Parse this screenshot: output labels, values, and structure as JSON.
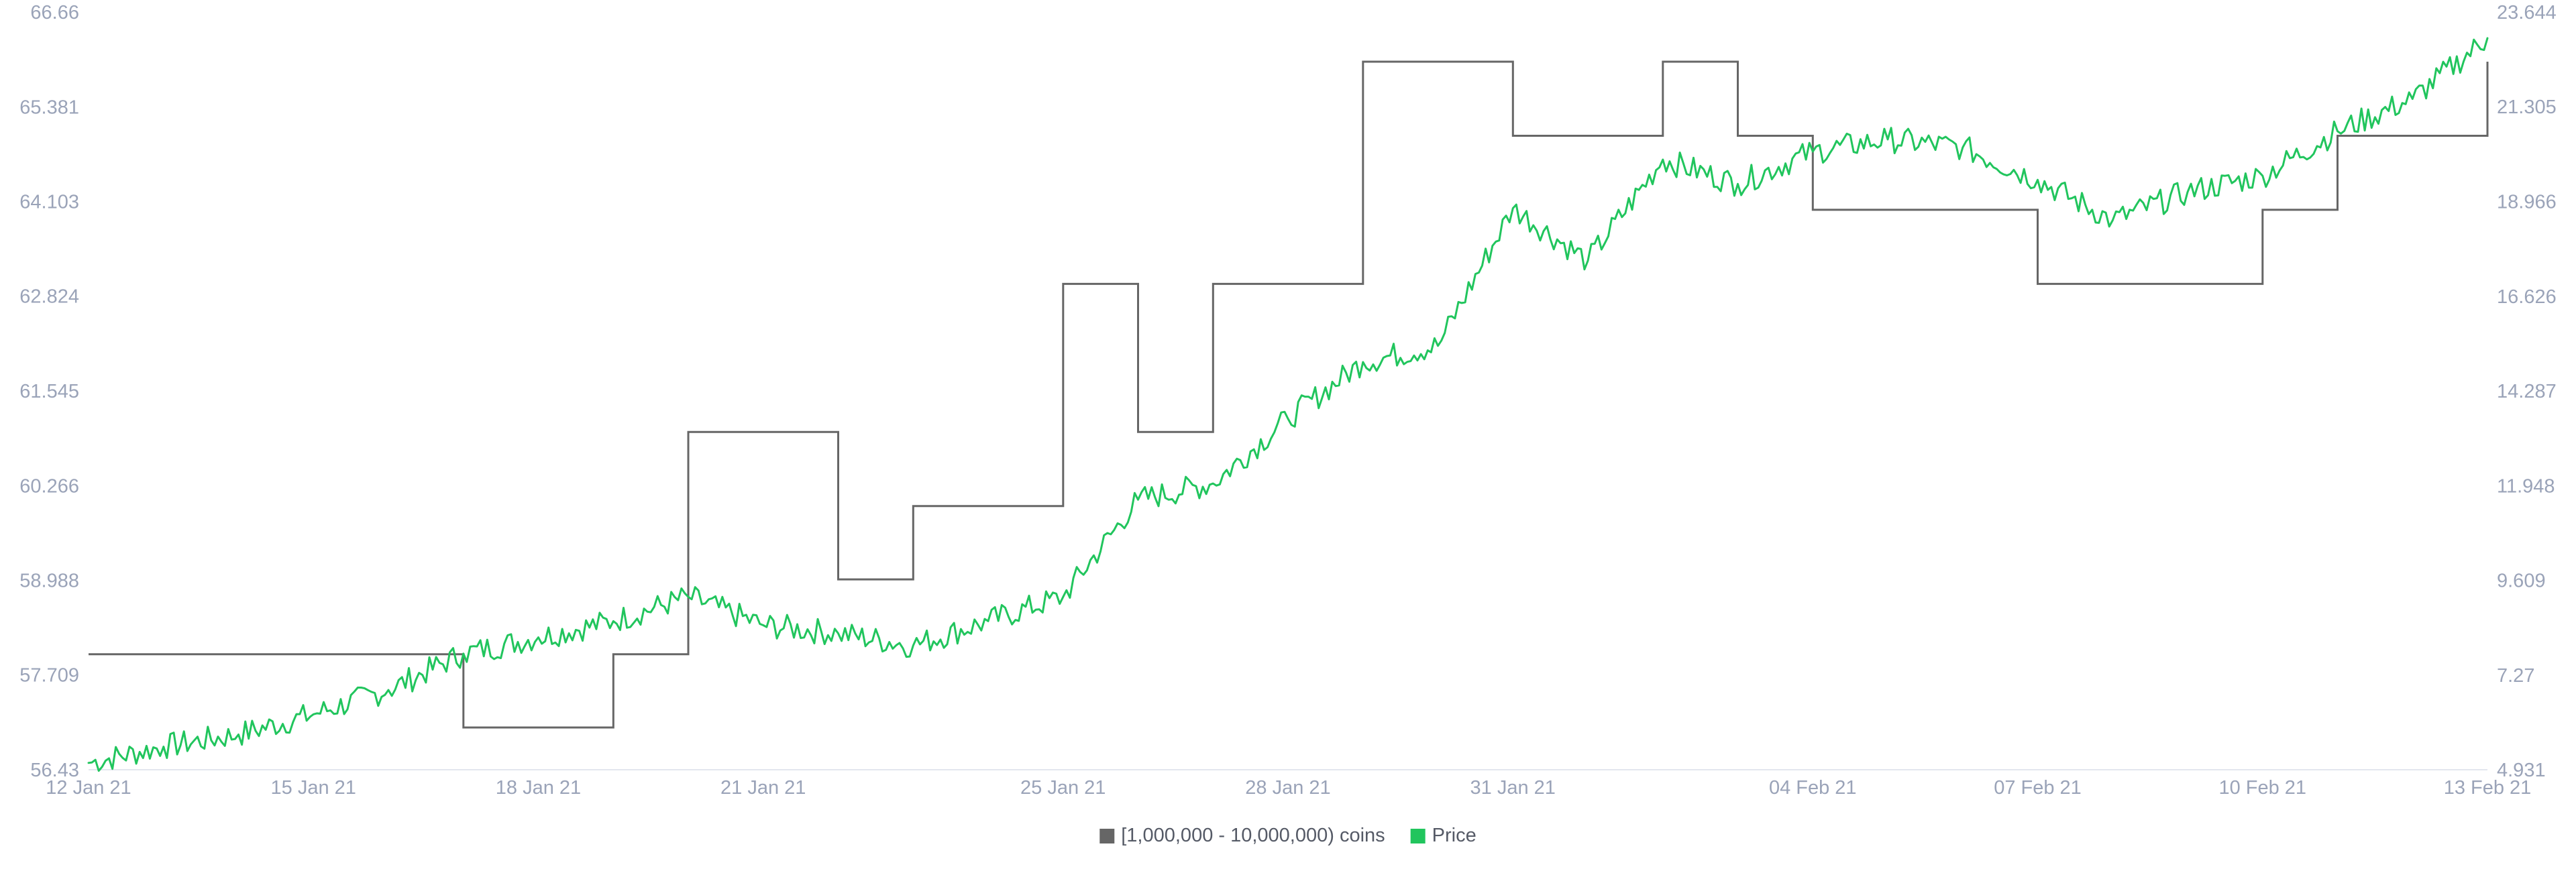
{
  "chart_data": {
    "type": "line",
    "title": "",
    "xlabel": "",
    "ylabel": "",
    "x_ticks": [
      "12 Jan 21",
      "15 Jan 21",
      "18 Jan 21",
      "21 Jan 21",
      "25 Jan 21",
      "28 Jan 21",
      "31 Jan 21",
      "04 Feb 21",
      "07 Feb 21",
      "10 Feb 21",
      "13 Feb 21"
    ],
    "x_range": [
      "2021-01-12",
      "2021-02-13"
    ],
    "left_axis": {
      "ticks": [
        "56.43",
        "57.709",
        "58.988",
        "60.266",
        "61.545",
        "62.824",
        "64.103",
        "65.381",
        "66.66"
      ],
      "range": [
        56.43,
        66.66
      ]
    },
    "right_axis": {
      "ticks": [
        "4.931",
        "7.27",
        "9.609",
        "11.948",
        "14.287",
        "16.626",
        "18.966",
        "21.305",
        "23.644"
      ],
      "range": [
        4.931,
        23.644
      ]
    },
    "legend_position": "bottom-center",
    "grid": "none",
    "series": [
      {
        "name": "[1,000,000 - 10,000,000) coins",
        "axis": "left",
        "color": "#666666",
        "shape": "step",
        "points": [
          [
            "2021-01-12",
            57.99
          ],
          [
            "2021-01-17",
            57.99
          ],
          [
            "2021-01-17",
            57.0
          ],
          [
            "2021-01-19",
            57.0
          ],
          [
            "2021-01-19",
            57.99
          ],
          [
            "2021-01-20",
            57.99
          ],
          [
            "2021-01-20",
            60.99
          ],
          [
            "2021-01-22",
            60.99
          ],
          [
            "2021-01-22",
            59.0
          ],
          [
            "2021-01-23",
            59.0
          ],
          [
            "2021-01-23",
            59.99
          ],
          [
            "2021-01-25",
            59.99
          ],
          [
            "2021-01-25",
            62.99
          ],
          [
            "2021-01-26",
            62.99
          ],
          [
            "2021-01-26",
            60.99
          ],
          [
            "2021-01-27",
            60.99
          ],
          [
            "2021-01-27",
            62.99
          ],
          [
            "2021-01-29",
            62.99
          ],
          [
            "2021-01-29",
            65.99
          ],
          [
            "2021-01-31",
            65.99
          ],
          [
            "2021-01-31",
            64.99
          ],
          [
            "2021-02-02",
            64.99
          ],
          [
            "2021-02-02",
            65.99
          ],
          [
            "2021-02-03",
            65.99
          ],
          [
            "2021-02-03",
            64.99
          ],
          [
            "2021-02-04",
            64.99
          ],
          [
            "2021-02-04",
            63.99
          ],
          [
            "2021-02-07",
            63.99
          ],
          [
            "2021-02-07",
            62.99
          ],
          [
            "2021-02-10",
            62.99
          ],
          [
            "2021-02-10",
            63.99
          ],
          [
            "2021-02-11",
            63.99
          ],
          [
            "2021-02-11",
            64.99
          ],
          [
            "2021-02-13",
            64.99
          ],
          [
            "2021-02-13",
            65.99
          ]
        ]
      },
      {
        "name": "Price",
        "axis": "right",
        "color": "#21c55d",
        "shape": "line",
        "points": [
          [
            "2021-01-12",
            5.1
          ],
          [
            "2021-01-13",
            5.5
          ],
          [
            "2021-01-14",
            5.8
          ],
          [
            "2021-01-15",
            6.3
          ],
          [
            "2021-01-16",
            6.9
          ],
          [
            "2021-01-17",
            7.8
          ],
          [
            "2021-01-18",
            8.2
          ],
          [
            "2021-01-19",
            8.6
          ],
          [
            "2021-01-20",
            9.2
          ],
          [
            "2021-01-21",
            8.5
          ],
          [
            "2021-01-22",
            8.3
          ],
          [
            "2021-01-23",
            8.0
          ],
          [
            "2021-01-24",
            8.6
          ],
          [
            "2021-01-25",
            9.2
          ],
          [
            "2021-01-26",
            11.6
          ],
          [
            "2021-01-27",
            12.0
          ],
          [
            "2021-01-28",
            13.6
          ],
          [
            "2021-01-29",
            15.0
          ],
          [
            "2021-01-30",
            15.4
          ],
          [
            "2021-01-31",
            18.8
          ],
          [
            "2021-02-01",
            17.5
          ],
          [
            "2021-02-02",
            20.0
          ],
          [
            "2021-02-03",
            19.4
          ],
          [
            "2021-02-04",
            20.2
          ],
          [
            "2021-02-05",
            20.5
          ],
          [
            "2021-02-06",
            20.3
          ],
          [
            "2021-02-07",
            19.5
          ],
          [
            "2021-02-08",
            18.5
          ],
          [
            "2021-02-09",
            19.2
          ],
          [
            "2021-02-10",
            19.6
          ],
          [
            "2021-02-11",
            20.7
          ],
          [
            "2021-02-12",
            21.5
          ],
          [
            "2021-02-13",
            23.0
          ]
        ]
      }
    ]
  }
}
